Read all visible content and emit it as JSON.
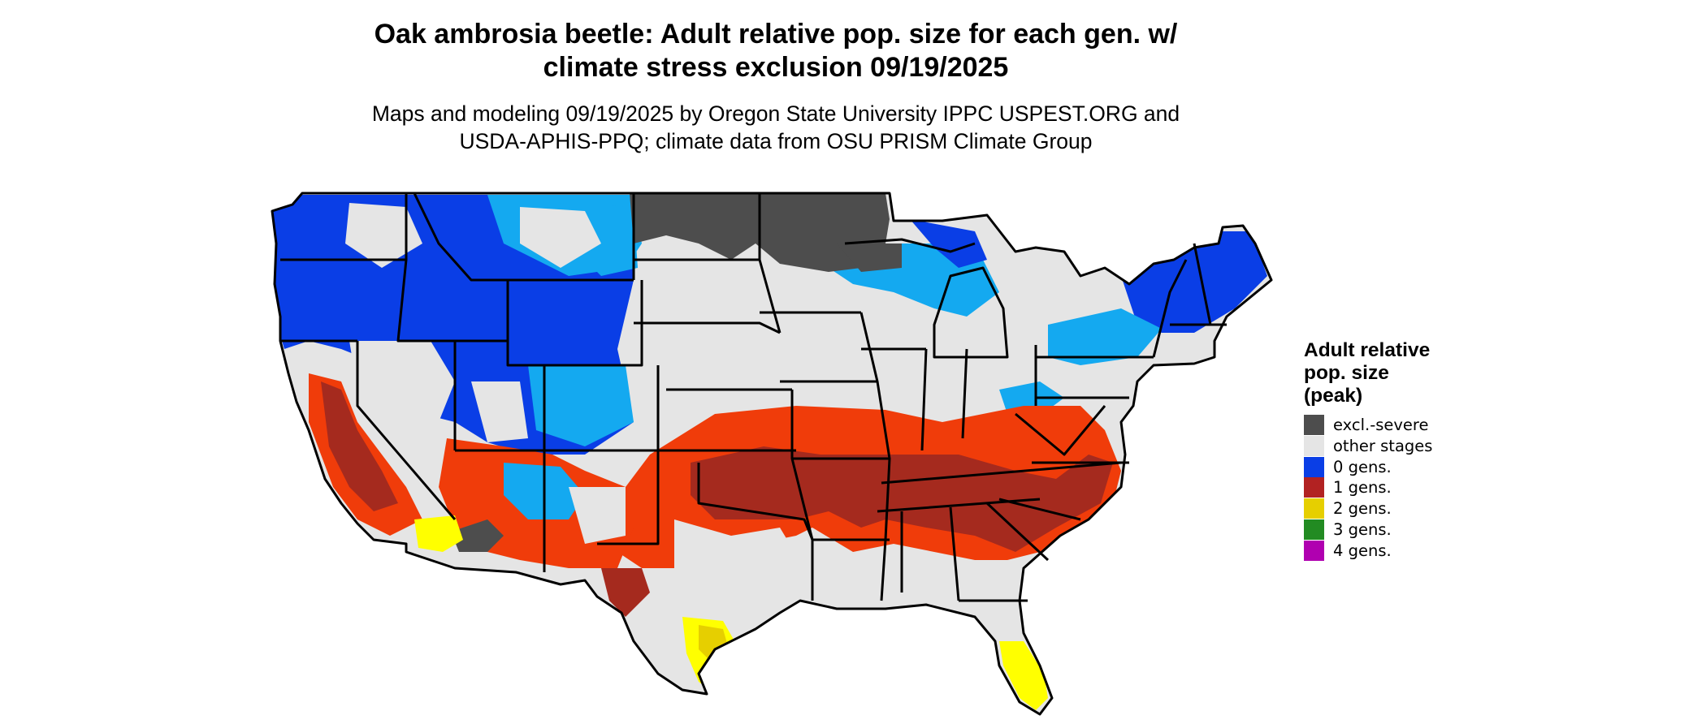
{
  "title": {
    "line1": "Oak ambrosia beetle: Adult relative pop. size for each gen. w/",
    "line2": "climate stress exclusion 09/19/2025"
  },
  "subtitle": {
    "line1": "Maps and modeling 09/19/2025 by Oregon State University IPPC USPEST.ORG and",
    "line2": "USDA-APHIS-PPQ; climate data from OSU PRISM Climate Group"
  },
  "legend": {
    "title_lines": [
      "Adult relative",
      "pop. size",
      "(peak)"
    ],
    "items": [
      {
        "label": "excl.-severe",
        "color": "#4d4d4d"
      },
      {
        "label": "other stages",
        "color": "#e5e5e5"
      },
      {
        "label": "0 gens.",
        "color": "#0a3ee6"
      },
      {
        "label": "1 gens.",
        "color": "#b22222"
      },
      {
        "label": "2 gens.",
        "color": "#e6cf00"
      },
      {
        "label": "3 gens.",
        "color": "#228b22"
      },
      {
        "label": "4 gens.",
        "color": "#b000b0"
      }
    ]
  },
  "map": {
    "region": "contiguous-united-states",
    "colors": {
      "background_stage": "#e5e5e5",
      "excluded": "#4d4d4d",
      "zero_gens": "#0a3ee6",
      "zero_gens_light": "#14a9f0",
      "one_gen_dark": "#a52a1e",
      "one_gen_orange": "#f03c0a",
      "two_gens": "#ffff00",
      "state_border": "#000000"
    }
  }
}
